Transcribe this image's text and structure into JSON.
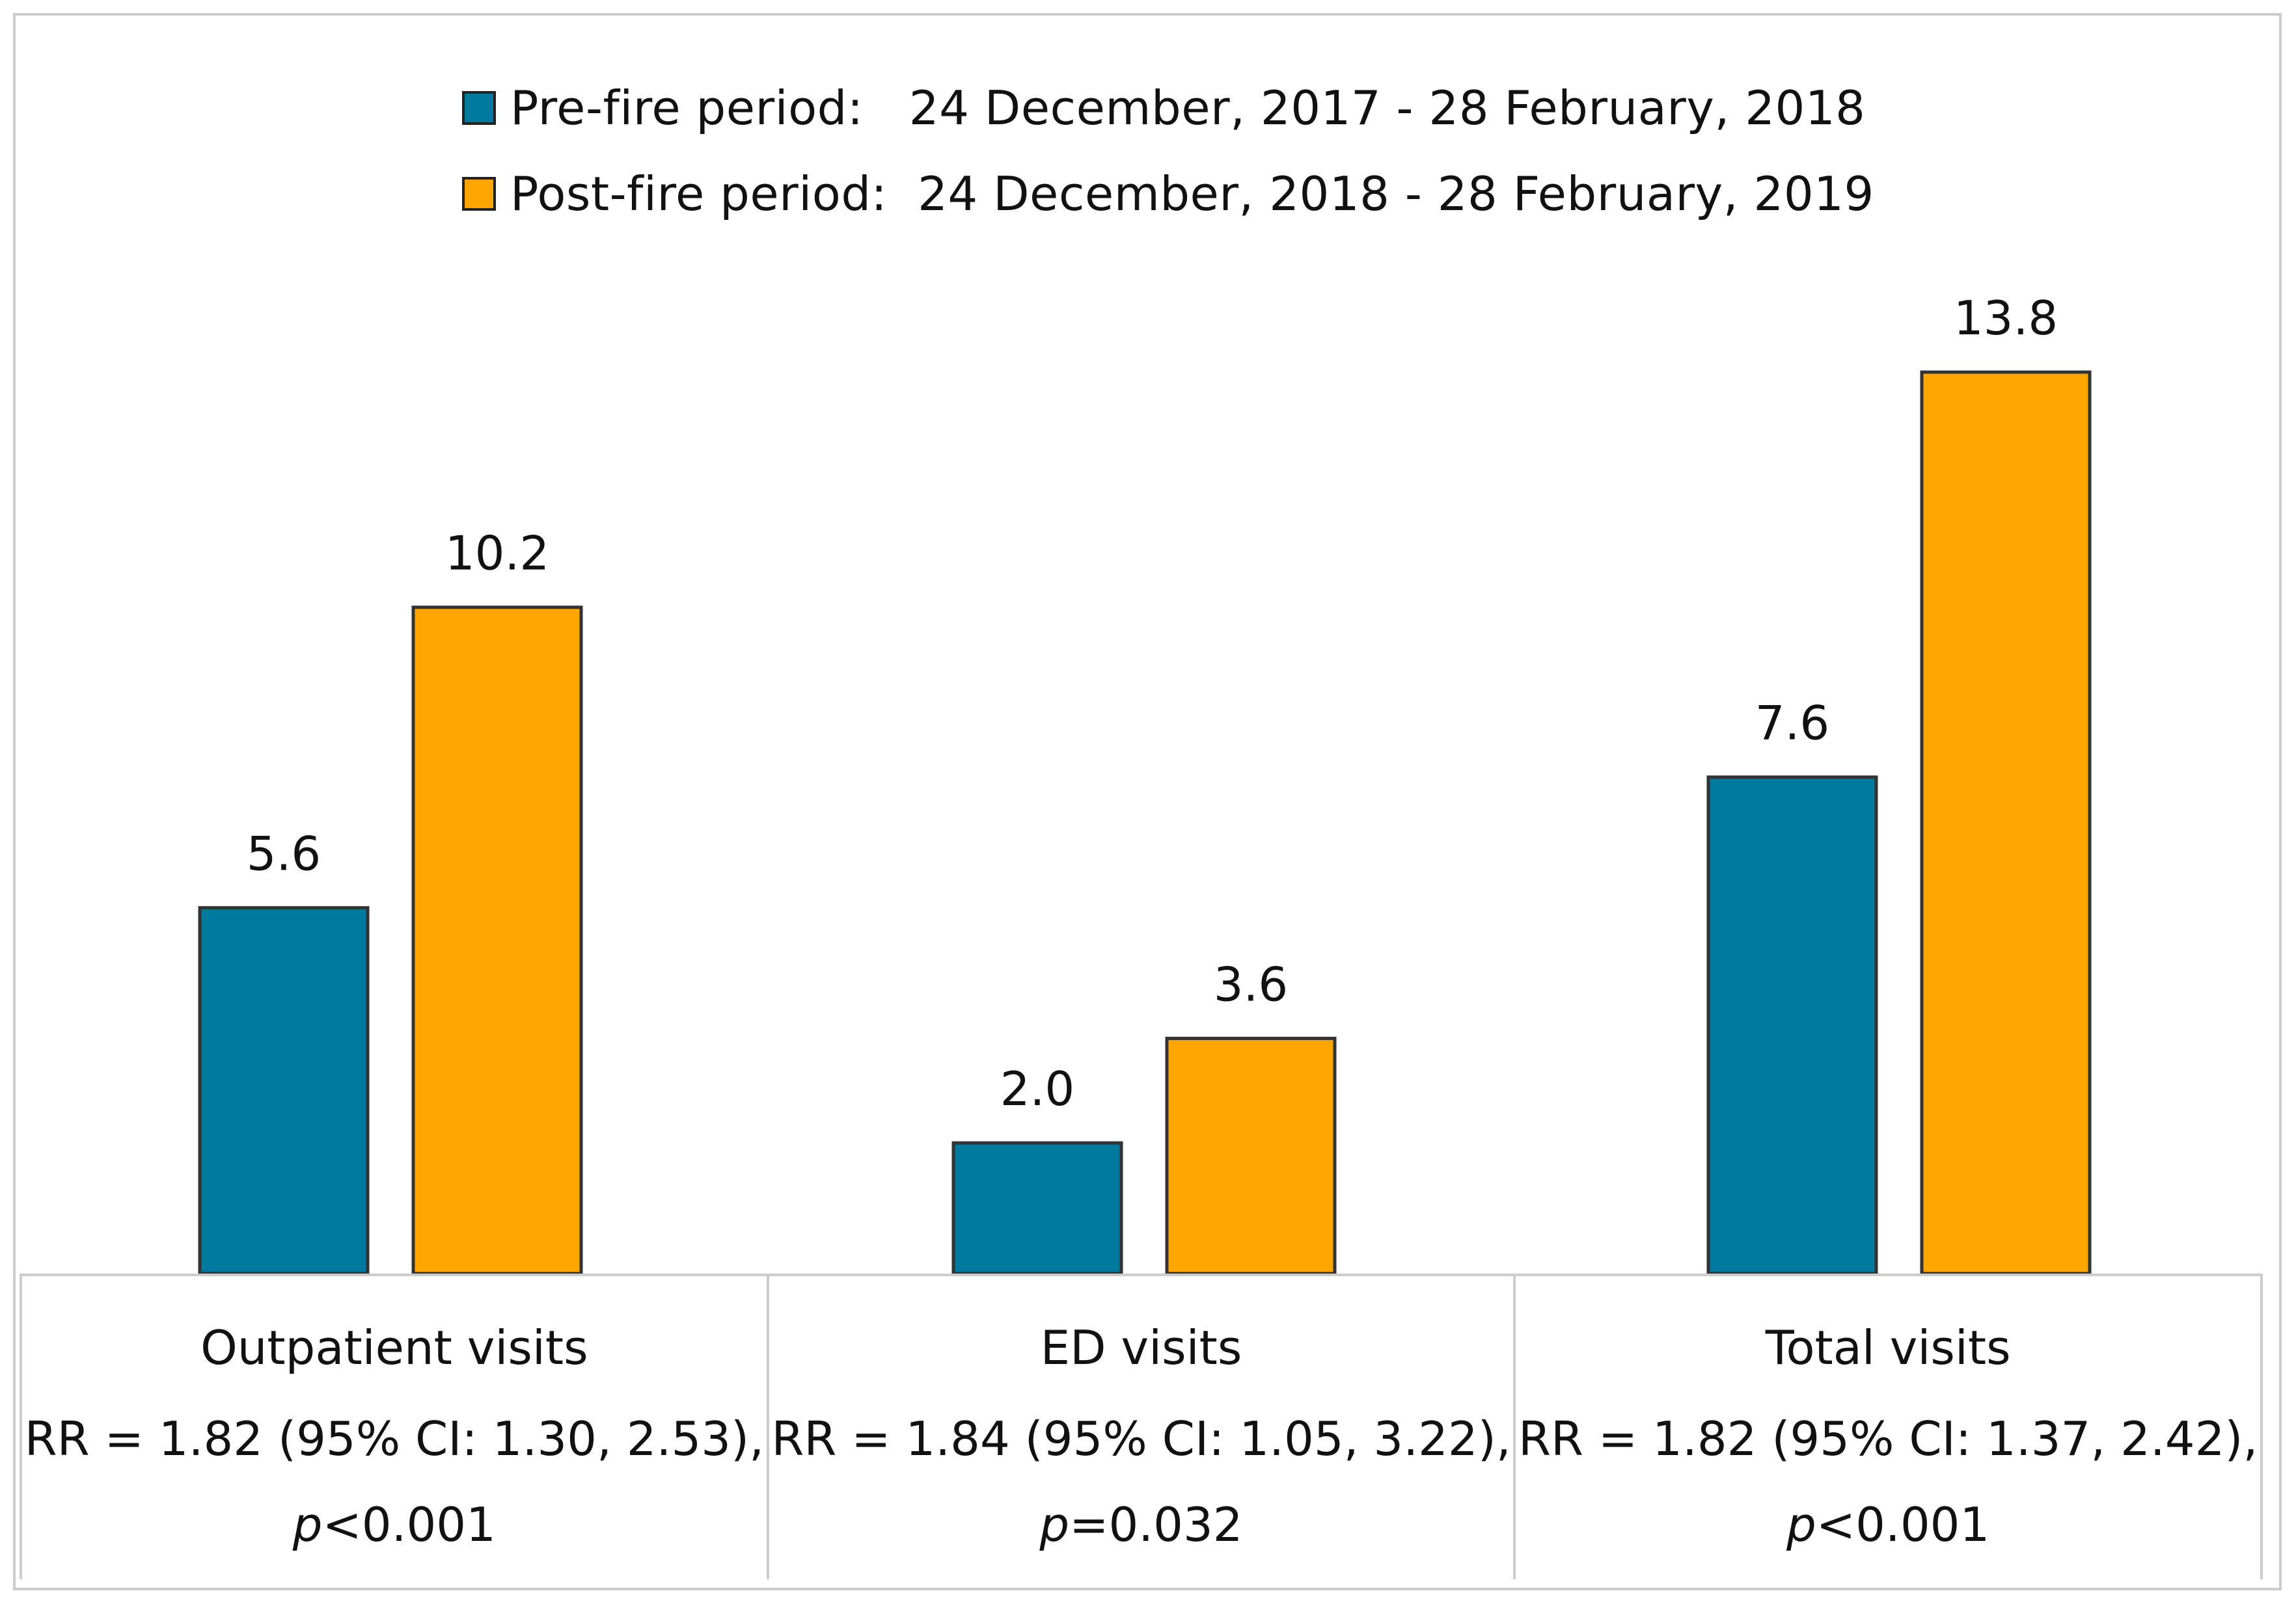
{
  "chart_data": {
    "type": "bar",
    "title": "",
    "xlabel": "",
    "ylabel": "",
    "ylim": [
      0,
      18.7
    ],
    "grid": false,
    "legend_position": "top",
    "categories": [
      "Outpatient visits",
      "ED visits",
      "Total visits"
    ],
    "series": [
      {
        "name": "Pre-fire period:   24 December, 2017 - 28 February, 2018",
        "color": "#00799F",
        "values": [
          5.6,
          2.0,
          7.6
        ],
        "labels": [
          "5.6",
          "2.0",
          "7.6"
        ]
      },
      {
        "name": "Post-fire period:  24 December, 2018 - 28 February, 2019",
        "color": "#FFA500",
        "values": [
          10.2,
          3.6,
          13.8
        ],
        "labels": [
          "10.2",
          "3.6",
          "13.8"
        ]
      }
    ],
    "annotations": [
      {
        "rr": "RR = 1.82 (95% CI: 1.30, 2.53),",
        "p_symbol": "p",
        "p_value": "<0.001"
      },
      {
        "rr": "RR = 1.84 (95% CI: 1.05, 3.22),",
        "p_symbol": "p",
        "p_value": "=0.032"
      },
      {
        "rr": "RR = 1.82 (95% CI: 1.37, 2.42),",
        "p_symbol": "p",
        "p_value": "<0.001"
      }
    ]
  }
}
